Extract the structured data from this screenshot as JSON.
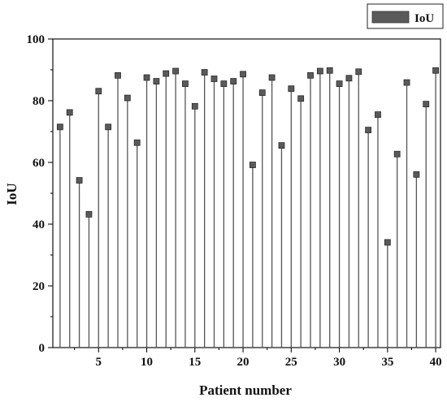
{
  "chart_data": {
    "type": "stem",
    "title": "",
    "xlabel": "Patient number",
    "ylabel": "IoU",
    "xlim": [
      0.25,
      40.5
    ],
    "ylim": [
      0,
      100
    ],
    "xticks": [
      5,
      10,
      15,
      20,
      25,
      30,
      35,
      40
    ],
    "yticks": [
      0,
      20,
      40,
      60,
      80,
      100
    ],
    "grid": false,
    "legend_position": "top-right",
    "series": [
      {
        "name": "IoU",
        "color": "#5a5a5a",
        "marker": "square",
        "x": [
          1,
          2,
          3,
          4,
          5,
          6,
          7,
          8,
          9,
          10,
          11,
          12,
          13,
          14,
          15,
          16,
          17,
          18,
          19,
          20,
          21,
          22,
          23,
          24,
          25,
          26,
          27,
          28,
          29,
          30,
          31,
          32,
          33,
          34,
          35,
          36,
          37,
          38,
          39,
          40
        ],
        "values": [
          71.5,
          76.2,
          54.2,
          43.2,
          83.1,
          71.5,
          88.2,
          80.9,
          66.4,
          87.5,
          86.3,
          88.8,
          89.6,
          85.5,
          78.2,
          89.2,
          87.1,
          85.5,
          86.3,
          88.6,
          59.2,
          82.6,
          87.5,
          65.5,
          83.9,
          80.7,
          88.2,
          89.6,
          89.8,
          85.5,
          87.3,
          89.4,
          70.5,
          75.5,
          34.1,
          62.7,
          85.9,
          56.1,
          78.9,
          89.8
        ]
      }
    ]
  }
}
